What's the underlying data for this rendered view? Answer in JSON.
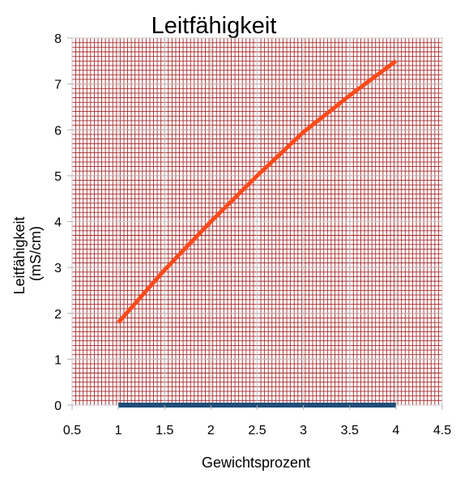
{
  "chart_data": {
    "type": "line",
    "title": "Leitfähigkeit",
    "xlabel": "Gewichtsprozent",
    "ylabel_lines": [
      "Leitfähigkeit",
      "(mS/cm)"
    ],
    "xlim": [
      0.5,
      4.5
    ],
    "ylim": [
      0,
      8
    ],
    "x_ticks": [
      "0.5",
      "1",
      "1.5",
      "2",
      "2.5",
      "3",
      "3.5",
      "4",
      "4.5"
    ],
    "y_ticks": [
      "0",
      "1",
      "2",
      "3",
      "4",
      "5",
      "6",
      "7",
      "8"
    ],
    "grid": "dense minor grid",
    "series": [
      {
        "x": [
          1,
          1.5,
          2,
          2.5,
          3,
          3.5,
          4
        ],
        "values": [
          1.8,
          2.95,
          4.0,
          5.0,
          5.95,
          6.75,
          7.5
        ],
        "color": "#ff4a1a"
      },
      {
        "x": [
          1,
          4
        ],
        "values": [
          0,
          0
        ],
        "color": "#1f4e79"
      }
    ],
    "colors": {
      "plot_background": "#ffffff",
      "minor_grid": "#a52a2a",
      "major_grid": "#c8c8c8"
    }
  }
}
